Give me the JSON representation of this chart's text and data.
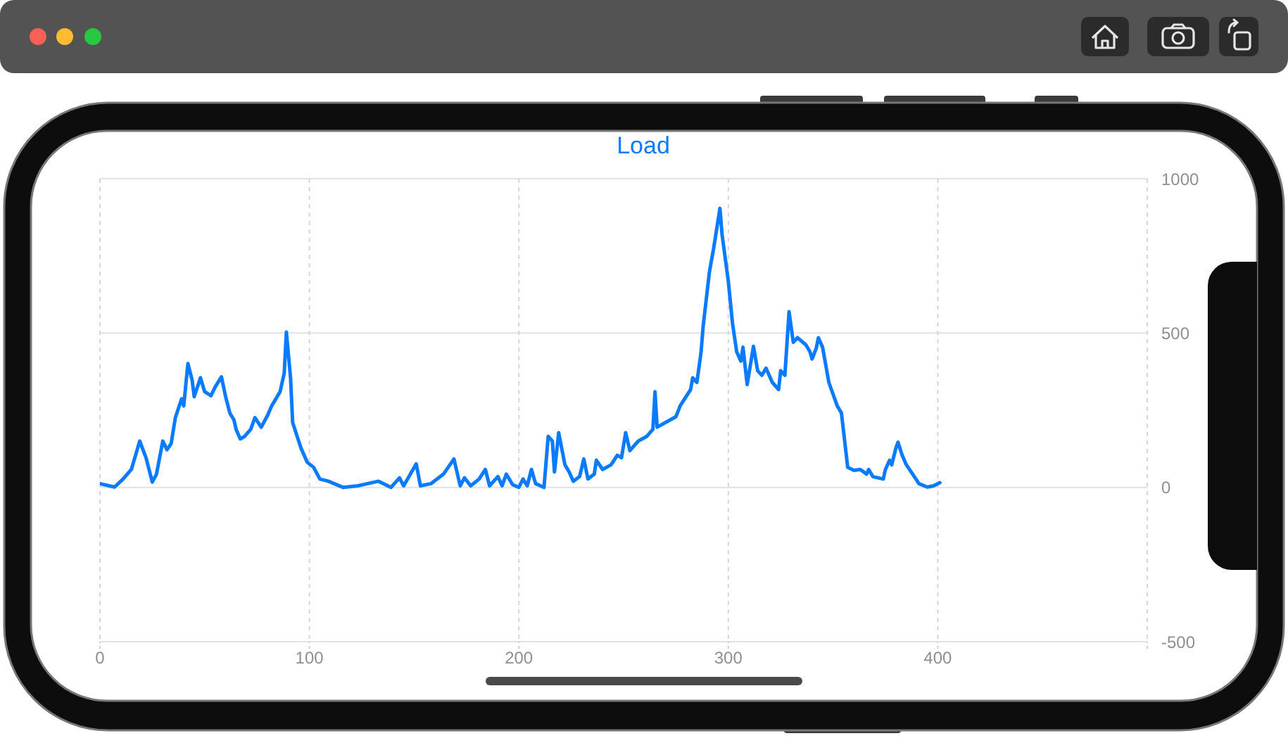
{
  "chart_data": {
    "type": "line",
    "title": "Load",
    "x": [
      0,
      7,
      11,
      15,
      19,
      22,
      25,
      27,
      30,
      32,
      34,
      36,
      39,
      40,
      42,
      44,
      45,
      48,
      50,
      53,
      55,
      58,
      60,
      62,
      64,
      65,
      67,
      69,
      72,
      74,
      77,
      80,
      82,
      86,
      88,
      89,
      91,
      92,
      96,
      99,
      102,
      105,
      109,
      116,
      123,
      133,
      139,
      143,
      145,
      151,
      153,
      158,
      164,
      169,
      172,
      174,
      177,
      181,
      184,
      186,
      190,
      192,
      194,
      197,
      200,
      202,
      204,
      206,
      208,
      212,
      214,
      216,
      217,
      219,
      222,
      224,
      226,
      229,
      231,
      233,
      236,
      237,
      240,
      244,
      247,
      249,
      251,
      253,
      257,
      261,
      264,
      265,
      266,
      270,
      275,
      277,
      282,
      283,
      285,
      287,
      288,
      291,
      293,
      296,
      297,
      300,
      302,
      304,
      306,
      307,
      309,
      312,
      314,
      316,
      318,
      321,
      324,
      325,
      327,
      329,
      331,
      333,
      337,
      339,
      340,
      342,
      343,
      345,
      348,
      352,
      354,
      357,
      360,
      363,
      366,
      367,
      369,
      374,
      375,
      377,
      378,
      380,
      381,
      383,
      385,
      388,
      391,
      395,
      398,
      401
    ],
    "series": [
      {
        "color": "#0a7aff",
        "values": [
          12,
          1,
          27,
          58,
          150,
          96,
          17,
          43,
          150,
          122,
          142,
          226,
          287,
          264,
          401,
          348,
          294,
          355,
          310,
          297,
          325,
          358,
          294,
          241,
          218,
          188,
          157,
          165,
          188,
          226,
          195,
          233,
          264,
          310,
          371,
          503,
          355,
          210,
          127,
          81,
          65,
          27,
          20,
          0,
          5,
          20,
          0,
          31,
          5,
          76,
          5,
          12,
          43,
          92,
          5,
          31,
          5,
          27,
          58,
          5,
          35,
          5,
          43,
          9,
          0,
          27,
          5,
          58,
          12,
          0,
          165,
          150,
          50,
          177,
          73,
          50,
          20,
          35,
          92,
          27,
          43,
          88,
          58,
          73,
          104,
          96,
          177,
          119,
          150,
          165,
          188,
          310,
          195,
          210,
          229,
          264,
          317,
          355,
          340,
          439,
          523,
          699,
          775,
          904,
          820,
          668,
          531,
          439,
          409,
          454,
          333,
          457,
          378,
          363,
          386,
          340,
          317,
          378,
          363,
          569,
          470,
          485,
          462,
          439,
          416,
          451,
          485,
          454,
          340,
          264,
          241,
          65,
          55,
          58,
          43,
          58,
          35,
          27,
          58,
          88,
          73,
          127,
          146,
          104,
          73,
          43,
          12,
          1,
          5,
          15
        ]
      }
    ],
    "xlim": [
      0,
      500
    ],
    "xticks": [
      0,
      100,
      200,
      300,
      400,
      {
        "value": 500,
        "label": null
      }
    ],
    "ylim": [
      -500,
      1000
    ],
    "yticks": [
      -500,
      0,
      500,
      1000
    ],
    "grid": true,
    "marker": "none",
    "line_style": "solid"
  }
}
